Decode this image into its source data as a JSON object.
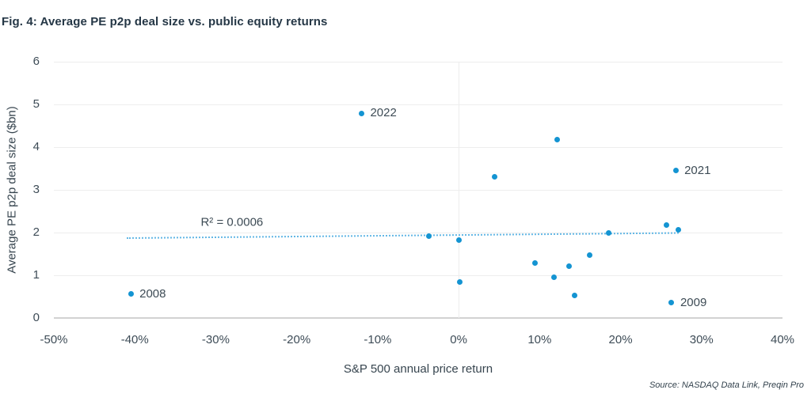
{
  "figure": {
    "title": "Fig. 4: Average PE p2p deal size vs. public equity returns"
  },
  "source": "Source: NASDAQ Data Link, Preqin Pro",
  "colors": {
    "point": "#1494d2",
    "trendline": "#63b7e5",
    "title_text": "#253746",
    "axis_text": "#3e4c57",
    "gridline": "#ededed",
    "axis_line": "#d2d2d2"
  },
  "chart_data": {
    "type": "scatter",
    "title": "Fig. 4: Average PE p2p deal size vs. public equity returns",
    "xlabel": "S&P 500 annual price return",
    "ylabel": "Average PE p2p deal size ($bn)",
    "xlim": [
      -50,
      40
    ],
    "ylim": [
      0,
      6
    ],
    "x_ticks": [
      -50,
      -40,
      -30,
      -20,
      -10,
      0,
      10,
      20,
      30,
      40
    ],
    "x_tick_labels": [
      "-50%",
      "-40%",
      "-30%",
      "-20%",
      "-10%",
      "0%",
      "10%",
      "20%",
      "30%",
      "40%"
    ],
    "y_ticks": [
      0,
      1,
      2,
      3,
      4,
      5,
      6
    ],
    "y_tick_labels": [
      "0",
      "1",
      "2",
      "3",
      "4",
      "5",
      "6"
    ],
    "grid": "horizontal lines at every y tick, single vertical line at x=0, darker baseline at y=0",
    "legend": null,
    "points": [
      {
        "x": -40.5,
        "y": 0.56,
        "label": "2008"
      },
      {
        "x": -12.0,
        "y": 4.79,
        "label": "2022"
      },
      {
        "x": -3.7,
        "y": 1.91
      },
      {
        "x": 0.0,
        "y": 1.83
      },
      {
        "x": 0.1,
        "y": 0.84
      },
      {
        "x": 4.4,
        "y": 3.3
      },
      {
        "x": 9.4,
        "y": 1.29
      },
      {
        "x": 11.8,
        "y": 0.95
      },
      {
        "x": 12.2,
        "y": 4.17
      },
      {
        "x": 13.6,
        "y": 1.22
      },
      {
        "x": 14.3,
        "y": 0.52
      },
      {
        "x": 16.2,
        "y": 1.47
      },
      {
        "x": 18.5,
        "y": 2.0
      },
      {
        "x": 25.7,
        "y": 2.17
      },
      {
        "x": 26.3,
        "y": 0.36,
        "label": "2009"
      },
      {
        "x": 26.8,
        "y": 3.45,
        "label": "2021"
      },
      {
        "x": 27.1,
        "y": 2.07
      }
    ],
    "trendline": {
      "x1": -41.0,
      "y1": 1.87,
      "x2": 27.2,
      "y2": 1.99,
      "r2_label": "R² = 0.0006",
      "r2_x": -28.0,
      "r2_y": 2.25,
      "style": "dotted"
    }
  }
}
